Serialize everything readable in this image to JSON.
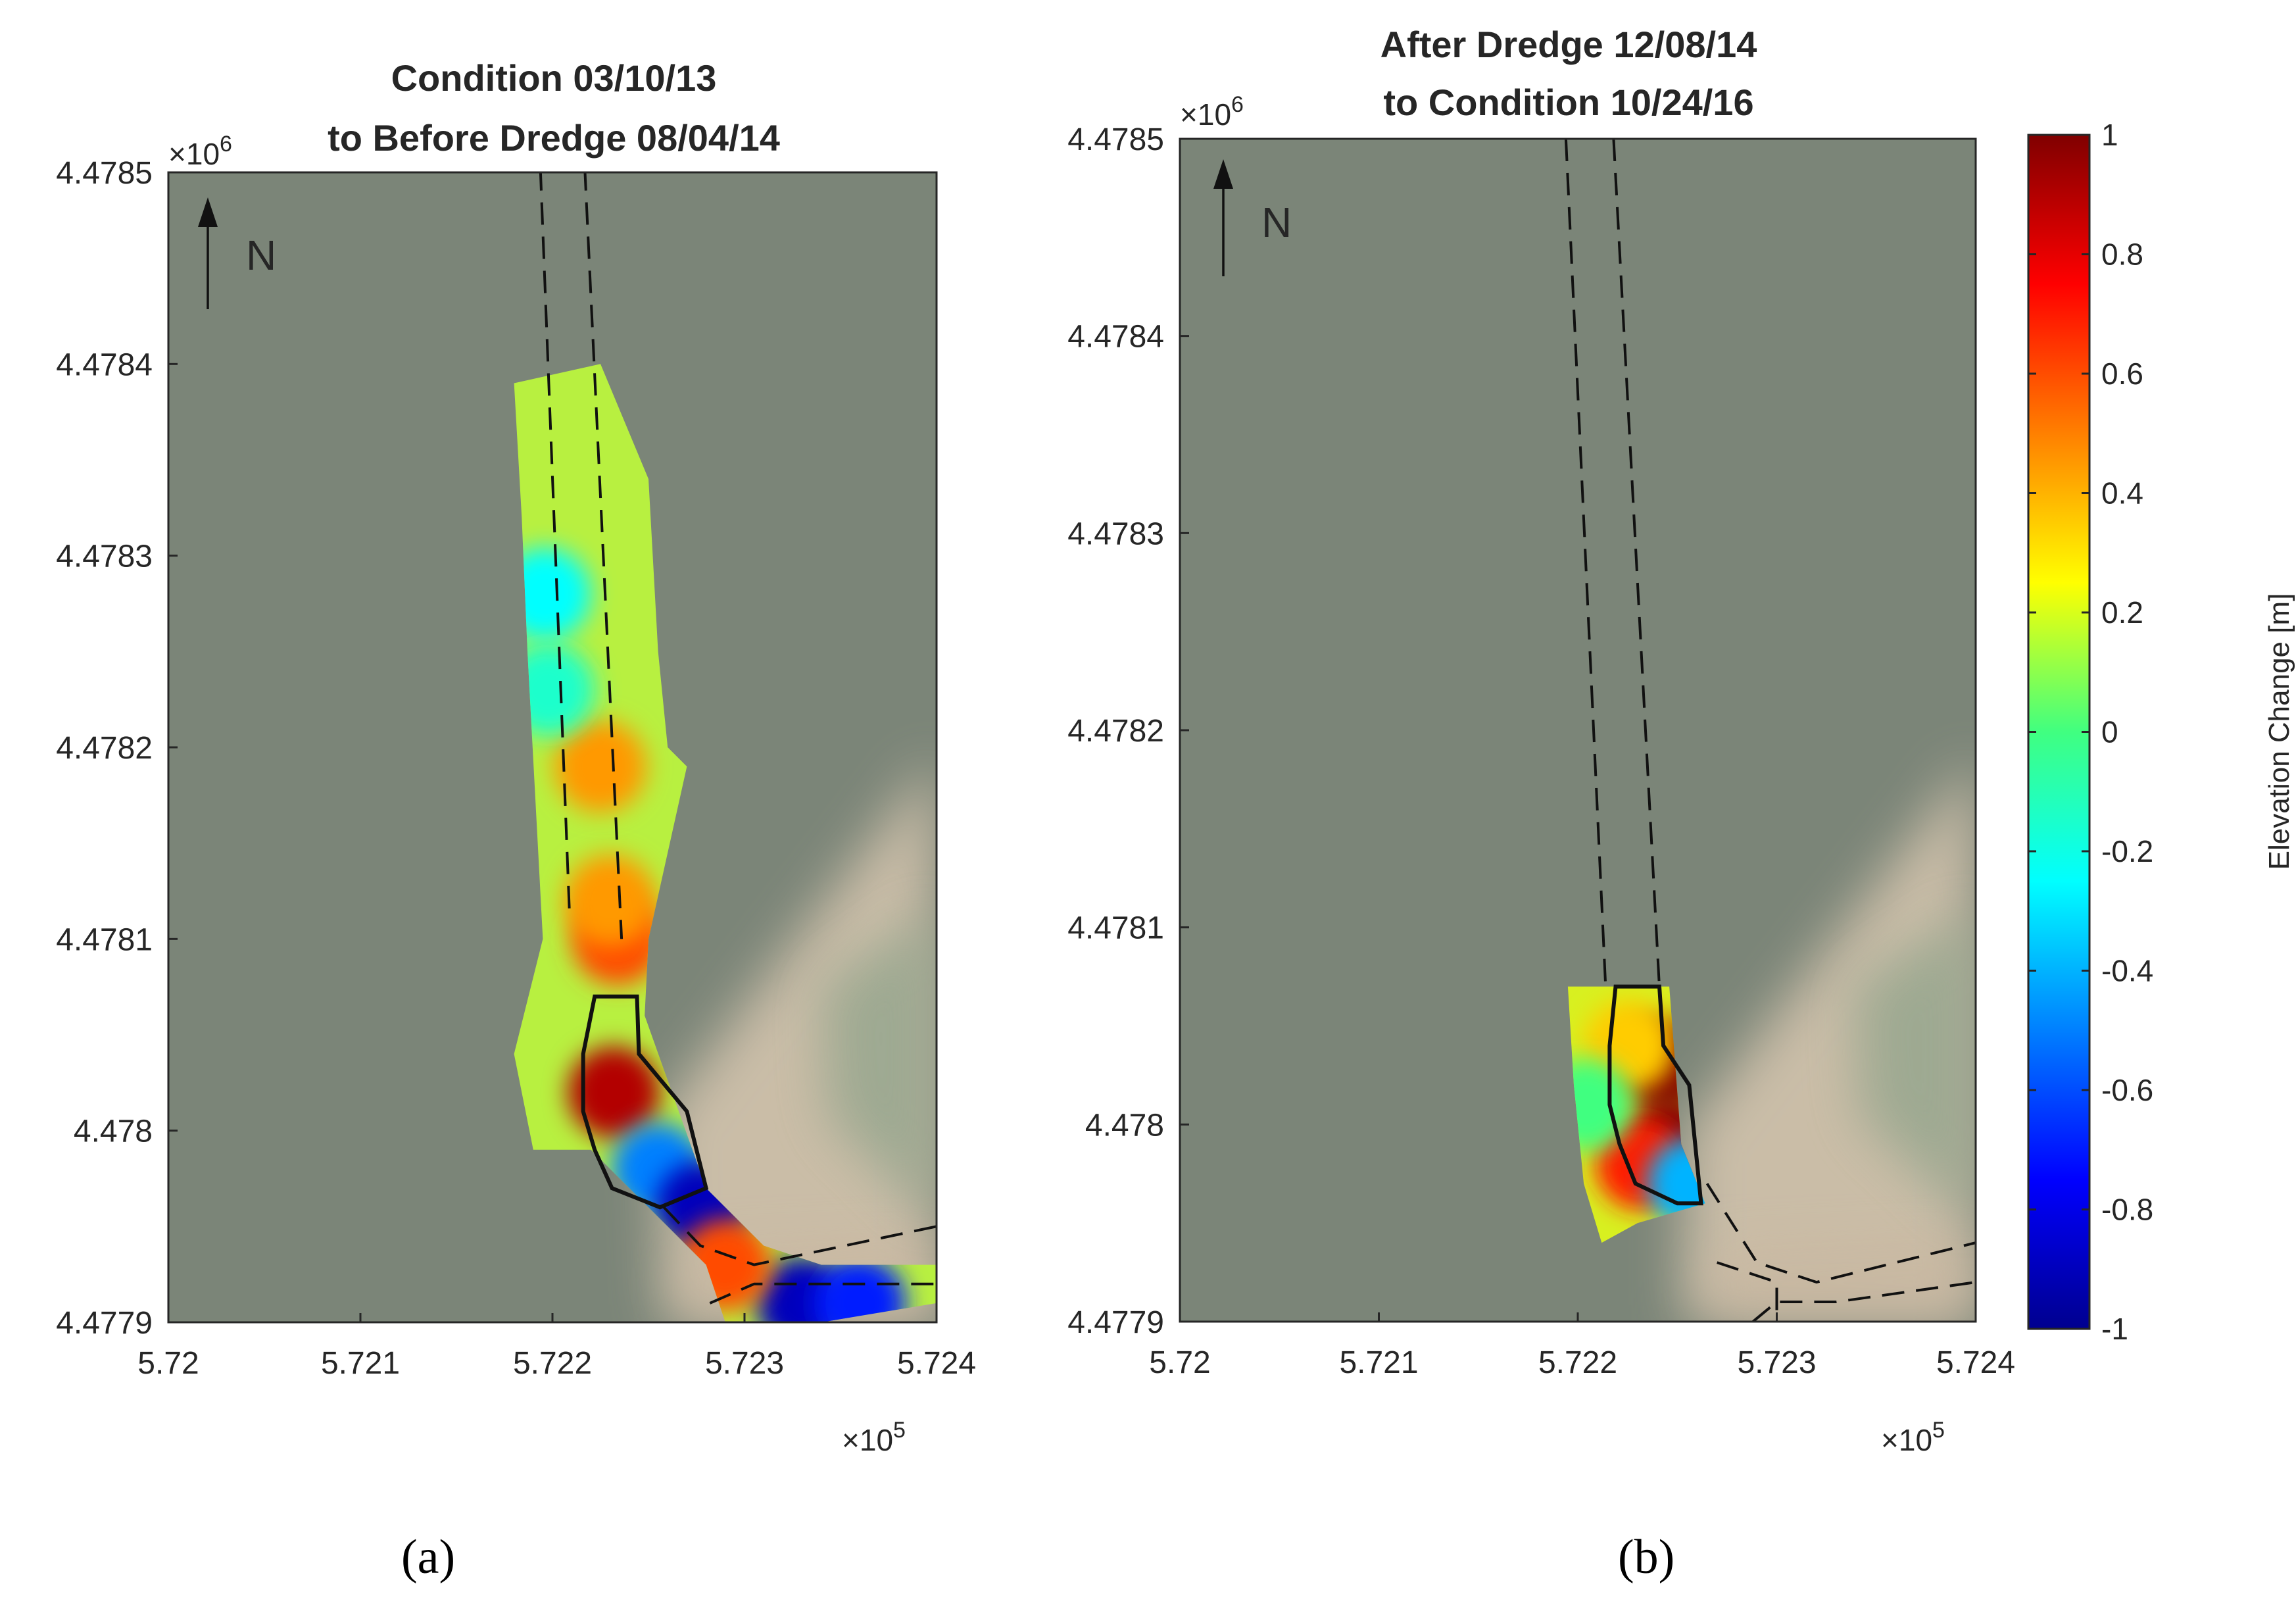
{
  "chart_data": [
    {
      "type": "heatmap",
      "panel_label": "(a)",
      "title": [
        "Condition 03/10/13",
        "to Before Dredge 08/04/14"
      ],
      "north_label": "N",
      "x_ticks": [
        5.72,
        5.721,
        5.722,
        5.723,
        5.724
      ],
      "x_tick_labels": [
        "5.72",
        "5.721",
        "5.722",
        "5.723",
        "5.724"
      ],
      "x_exponent": "×10",
      "x_exponent_power": "5",
      "y_ticks": [
        4.4779,
        4.478,
        4.4781,
        4.4782,
        4.4783,
        4.4784,
        4.4785
      ],
      "y_tick_labels": [
        "4.4779",
        "4.478",
        "4.4781",
        "4.4782",
        "4.4783",
        "4.4784",
        "4.4785"
      ],
      "y_exponent": "×10",
      "y_exponent_power": "6",
      "xlim": [
        5.72,
        5.724
      ],
      "ylim": [
        4.4779,
        4.4785
      ],
      "survey_region": [
        [
          5.7218,
          4.47839
        ],
        [
          5.72225,
          4.4784
        ],
        [
          5.7225,
          4.47834
        ],
        [
          5.72255,
          4.47825
        ],
        [
          5.7226,
          4.4782
        ],
        [
          5.7227,
          4.47819
        ],
        [
          5.7225,
          4.4781
        ],
        [
          5.72248,
          4.47806
        ],
        [
          5.7228,
          4.47797
        ],
        [
          5.7231,
          4.47794
        ],
        [
          5.7234,
          4.47793
        ],
        [
          5.724,
          4.47793
        ],
        [
          5.724,
          4.47791
        ],
        [
          5.7234,
          4.4779
        ],
        [
          5.7229,
          4.4779
        ],
        [
          5.7228,
          4.47793
        ],
        [
          5.7222,
          4.47799
        ],
        [
          5.7219,
          4.47799
        ],
        [
          5.7218,
          4.47804
        ],
        [
          5.72195,
          4.4781
        ],
        [
          5.72187,
          4.47825
        ],
        [
          5.72184,
          4.47832
        ]
      ],
      "hotspots": [
        {
          "x": 5.72232,
          "y": 4.47802,
          "value": 0.9
        },
        {
          "x": 5.72234,
          "y": 4.4781,
          "value": 0.6
        },
        {
          "x": 5.7223,
          "y": 4.47812,
          "value": 0.45
        },
        {
          "x": 5.72225,
          "y": 4.47819,
          "value": 0.45
        },
        {
          "x": 5.72196,
          "y": 4.47828,
          "value": -0.25
        },
        {
          "x": 5.72198,
          "y": 4.47823,
          "value": -0.15
        },
        {
          "x": 5.72255,
          "y": 4.47798,
          "value": -0.5
        },
        {
          "x": 5.72278,
          "y": 4.47796,
          "value": -0.9
        },
        {
          "x": 5.7233,
          "y": 4.47791,
          "value": -0.9
        },
        {
          "x": 5.7236,
          "y": 4.47791,
          "value": -0.7
        },
        {
          "x": 5.7229,
          "y": 4.47793,
          "value": 0.6
        }
      ],
      "channel_lines": [
        [
          [
            5.72193,
            4.47852
          ],
          [
            5.72209,
            4.47811
          ]
        ],
        [
          [
            5.72216,
            4.47852
          ],
          [
            5.72236,
            4.4781
          ]
        ],
        [
          [
            5.72258,
            4.47796
          ],
          [
            5.72277,
            4.47794
          ],
          [
            5.72305,
            4.47793
          ],
          [
            5.724,
            4.47795
          ]
        ],
        [
          [
            5.72282,
            4.47791
          ],
          [
            5.72305,
            4.47792
          ],
          [
            5.724,
            4.47792
          ]
        ]
      ],
      "dredge_outline": [
        [
          5.72222,
          4.47807
        ],
        [
          5.72244,
          4.47807
        ],
        [
          5.72245,
          4.47804
        ],
        [
          5.7227,
          4.47801
        ],
        [
          5.7228,
          4.47797
        ],
        [
          5.72256,
          4.47796
        ],
        [
          5.72231,
          4.47797
        ],
        [
          5.72222,
          4.47799
        ],
        [
          5.72216,
          4.47801
        ],
        [
          5.72216,
          4.47804
        ]
      ]
    },
    {
      "type": "heatmap",
      "panel_label": "(b)",
      "title": [
        "After Dredge 12/08/14",
        "to Condition 10/24/16"
      ],
      "north_label": "N",
      "x_ticks": [
        5.72,
        5.721,
        5.722,
        5.723,
        5.724
      ],
      "x_tick_labels": [
        "5.72",
        "5.721",
        "5.722",
        "5.723",
        "5.724"
      ],
      "x_exponent": "×10",
      "x_exponent_power": "5",
      "y_ticks": [
        4.4779,
        4.478,
        4.4781,
        4.4782,
        4.4783,
        4.4784,
        4.4785
      ],
      "y_tick_labels": [
        "4.4779",
        "4.478",
        "4.4781",
        "4.4782",
        "4.4783",
        "4.4784",
        "4.4785"
      ],
      "y_exponent": "×10",
      "y_exponent_power": "6",
      "xlim": [
        5.72,
        5.724
      ],
      "ylim": [
        4.4779,
        4.4785
      ],
      "survey_region": [
        [
          5.72195,
          4.47807
        ],
        [
          5.72246,
          4.47807
        ],
        [
          5.72252,
          4.47799
        ],
        [
          5.72264,
          4.47796
        ],
        [
          5.7223,
          4.47795
        ],
        [
          5.72212,
          4.47794
        ],
        [
          5.72203,
          4.47797
        ],
        [
          5.72198,
          4.47802
        ]
      ],
      "hotspots": [
        {
          "x": 5.72247,
          "y": 4.47799,
          "value": 1.0
        },
        {
          "x": 5.72242,
          "y": 4.47803,
          "value": 1.0
        },
        {
          "x": 5.72232,
          "y": 4.47798,
          "value": 0.7
        },
        {
          "x": 5.72226,
          "y": 4.47804,
          "value": 0.35
        },
        {
          "x": 5.72204,
          "y": 4.47801,
          "value": 0.0
        },
        {
          "x": 5.72258,
          "y": 4.47797,
          "value": -0.4
        }
      ],
      "channel_lines": [
        [
          [
            5.72194,
            4.4785
          ],
          [
            5.72214,
            4.47807
          ]
        ],
        [
          [
            5.72218,
            4.4785
          ],
          [
            5.72241,
            4.47807
          ]
        ],
        [
          [
            5.72265,
            4.47797
          ],
          [
            5.7229,
            4.47793
          ],
          [
            5.7232,
            4.47792
          ],
          [
            5.724,
            4.47794
          ]
        ],
        [
          [
            5.7227,
            4.47793
          ],
          [
            5.723,
            4.47792
          ],
          [
            5.723,
            4.4779
          ]
        ],
        [
          [
            5.72288,
            4.4779
          ],
          [
            5.723,
            4.47791
          ],
          [
            5.7233,
            4.47791
          ],
          [
            5.724,
            4.47792
          ]
        ]
      ],
      "dredge_outline": [
        [
          5.72219,
          4.47807
        ],
        [
          5.72241,
          4.47807
        ],
        [
          5.72243,
          4.47804
        ],
        [
          5.72256,
          4.47802
        ],
        [
          5.72262,
          4.47796
        ],
        [
          5.7225,
          4.47796
        ],
        [
          5.72229,
          4.47797
        ],
        [
          5.72221,
          4.47799
        ],
        [
          5.72216,
          4.47801
        ],
        [
          5.72216,
          4.47804
        ]
      ]
    }
  ],
  "colorbar": {
    "label": "Elevation Change [m]",
    "range": [
      -1,
      1
    ],
    "ticks": [
      1,
      0.8,
      0.6,
      0.4,
      0.2,
      0,
      -0.2,
      -0.4,
      -0.6,
      -0.8,
      -1
    ],
    "tick_labels": [
      "1",
      "0.8",
      "0.6",
      "0.4",
      "0.2",
      "0",
      "-0.2",
      "-0.4",
      "-0.6",
      "-0.8",
      "-1"
    ],
    "colormap": "jet"
  },
  "colors": {
    "water": "#7b8578",
    "sand": "#d8c7b0",
    "vegetation": "#93a48c"
  }
}
